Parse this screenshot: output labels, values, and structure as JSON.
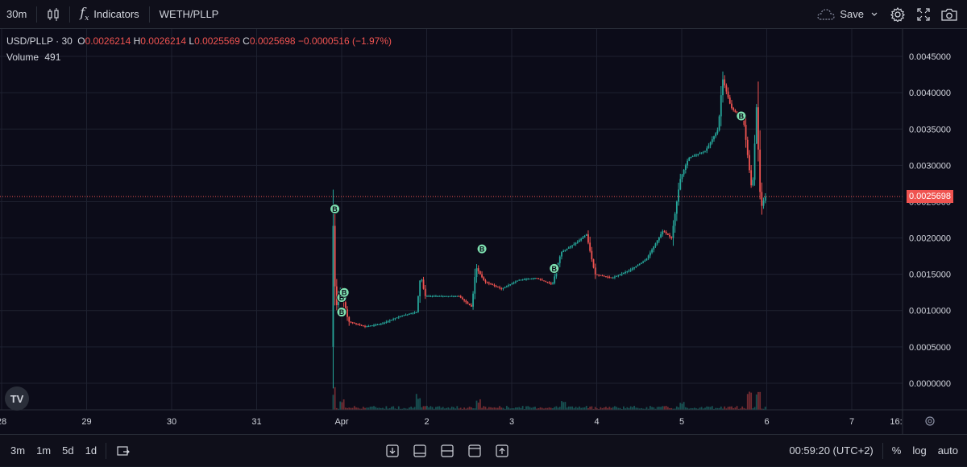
{
  "toolbar": {
    "interval": "30m",
    "indicators_label": "Indicators",
    "symbol": "WETH/PLLP",
    "save_label": "Save"
  },
  "legend": {
    "symbol": "USD/PLLP",
    "interval": "30",
    "open_label": "O",
    "open": "0.0026214",
    "high_label": "H",
    "high": "0.0026214",
    "low_label": "L",
    "low": "0.0025569",
    "close_label": "C",
    "close": "0.0025698",
    "change": "−0.0000516 (−1.97%)",
    "volume_label": "Volume",
    "volume": "491"
  },
  "price_tag": "0.0025698",
  "bottom": {
    "ranges": [
      "3m",
      "1m",
      "5d",
      "1d"
    ],
    "clock": "00:59:20 (UTC+2)",
    "percent_label": "%",
    "log_label": "log",
    "auto_label": "auto"
  },
  "colors": {
    "up": "#26a69a",
    "down": "#ef5350",
    "marker": "#7ee0b0",
    "grid": "#1e2130"
  },
  "chart_data": {
    "type": "candlestick",
    "title": "USD/PLLP",
    "x_axis_ticks": [
      "28",
      "29",
      "30",
      "31",
      "Apr",
      "2",
      "3",
      "4",
      "5",
      "6",
      "7",
      "16:"
    ],
    "y_axis_ticks": [
      "0.0045000",
      "0.0040000",
      "0.0035000",
      "0.0030000",
      "0.0025000",
      "0.0020000",
      "0.0015000",
      "0.0010000",
      "0.0005000",
      "0.0000000"
    ],
    "ylim": [
      -0.0003,
      0.0048
    ],
    "grid": true,
    "current_price": 0.0025698,
    "price_path": [
      [
        31.9,
        0.0005
      ],
      [
        31.92,
        0.0022
      ],
      [
        31.95,
        0.001
      ],
      [
        32.0,
        0.0013
      ],
      [
        32.05,
        0.0011
      ],
      [
        32.1,
        0.00085
      ],
      [
        32.3,
        0.00078
      ],
      [
        32.5,
        0.00082
      ],
      [
        32.7,
        0.00092
      ],
      [
        32.9,
        0.00098
      ],
      [
        32.95,
        0.0015
      ],
      [
        33.0,
        0.0012
      ],
      [
        33.4,
        0.0012
      ],
      [
        33.55,
        0.00105
      ],
      [
        33.6,
        0.0016
      ],
      [
        33.7,
        0.0014
      ],
      [
        33.9,
        0.0013
      ],
      [
        34.1,
        0.00142
      ],
      [
        34.3,
        0.00145
      ],
      [
        34.5,
        0.00136
      ],
      [
        34.6,
        0.0018
      ],
      [
        34.8,
        0.00195
      ],
      [
        34.9,
        0.00205
      ],
      [
        35.0,
        0.0015
      ],
      [
        35.2,
        0.00145
      ],
      [
        35.4,
        0.00155
      ],
      [
        35.6,
        0.0017
      ],
      [
        35.7,
        0.0019
      ],
      [
        35.8,
        0.0021
      ],
      [
        35.9,
        0.002
      ],
      [
        36.0,
        0.0028
      ],
      [
        36.1,
        0.0031
      ],
      [
        36.3,
        0.0032
      ],
      [
        36.45,
        0.0035
      ],
      [
        36.5,
        0.0042
      ],
      [
        36.6,
        0.0038
      ],
      [
        36.75,
        0.0036
      ],
      [
        36.8,
        0.0031
      ],
      [
        36.85,
        0.0026
      ],
      [
        36.9,
        0.0038
      ],
      [
        36.95,
        0.0024
      ],
      [
        37.0,
        0.0025698
      ]
    ],
    "buy_markers": [
      {
        "x": 31.92,
        "y": 0.0024,
        "label": "B"
      },
      {
        "x": 32.0,
        "y": 0.00118,
        "label": "B"
      },
      {
        "x": 32.03,
        "y": 0.00125,
        "label": "B"
      },
      {
        "x": 32.0,
        "y": 0.00098,
        "label": "B"
      },
      {
        "x": 33.65,
        "y": 0.00185,
        "label": "B"
      },
      {
        "x": 34.5,
        "y": 0.00158,
        "label": "B"
      },
      {
        "x": 36.7,
        "y": 0.00368,
        "label": "B"
      }
    ],
    "volume_peaks": [
      [
        31.9,
        1.0
      ],
      [
        32.0,
        0.6
      ],
      [
        32.9,
        0.7
      ],
      [
        33.6,
        0.55
      ],
      [
        34.6,
        0.5
      ],
      [
        36.0,
        0.5
      ],
      [
        36.8,
        0.85
      ],
      [
        36.9,
        1.0
      ]
    ]
  }
}
